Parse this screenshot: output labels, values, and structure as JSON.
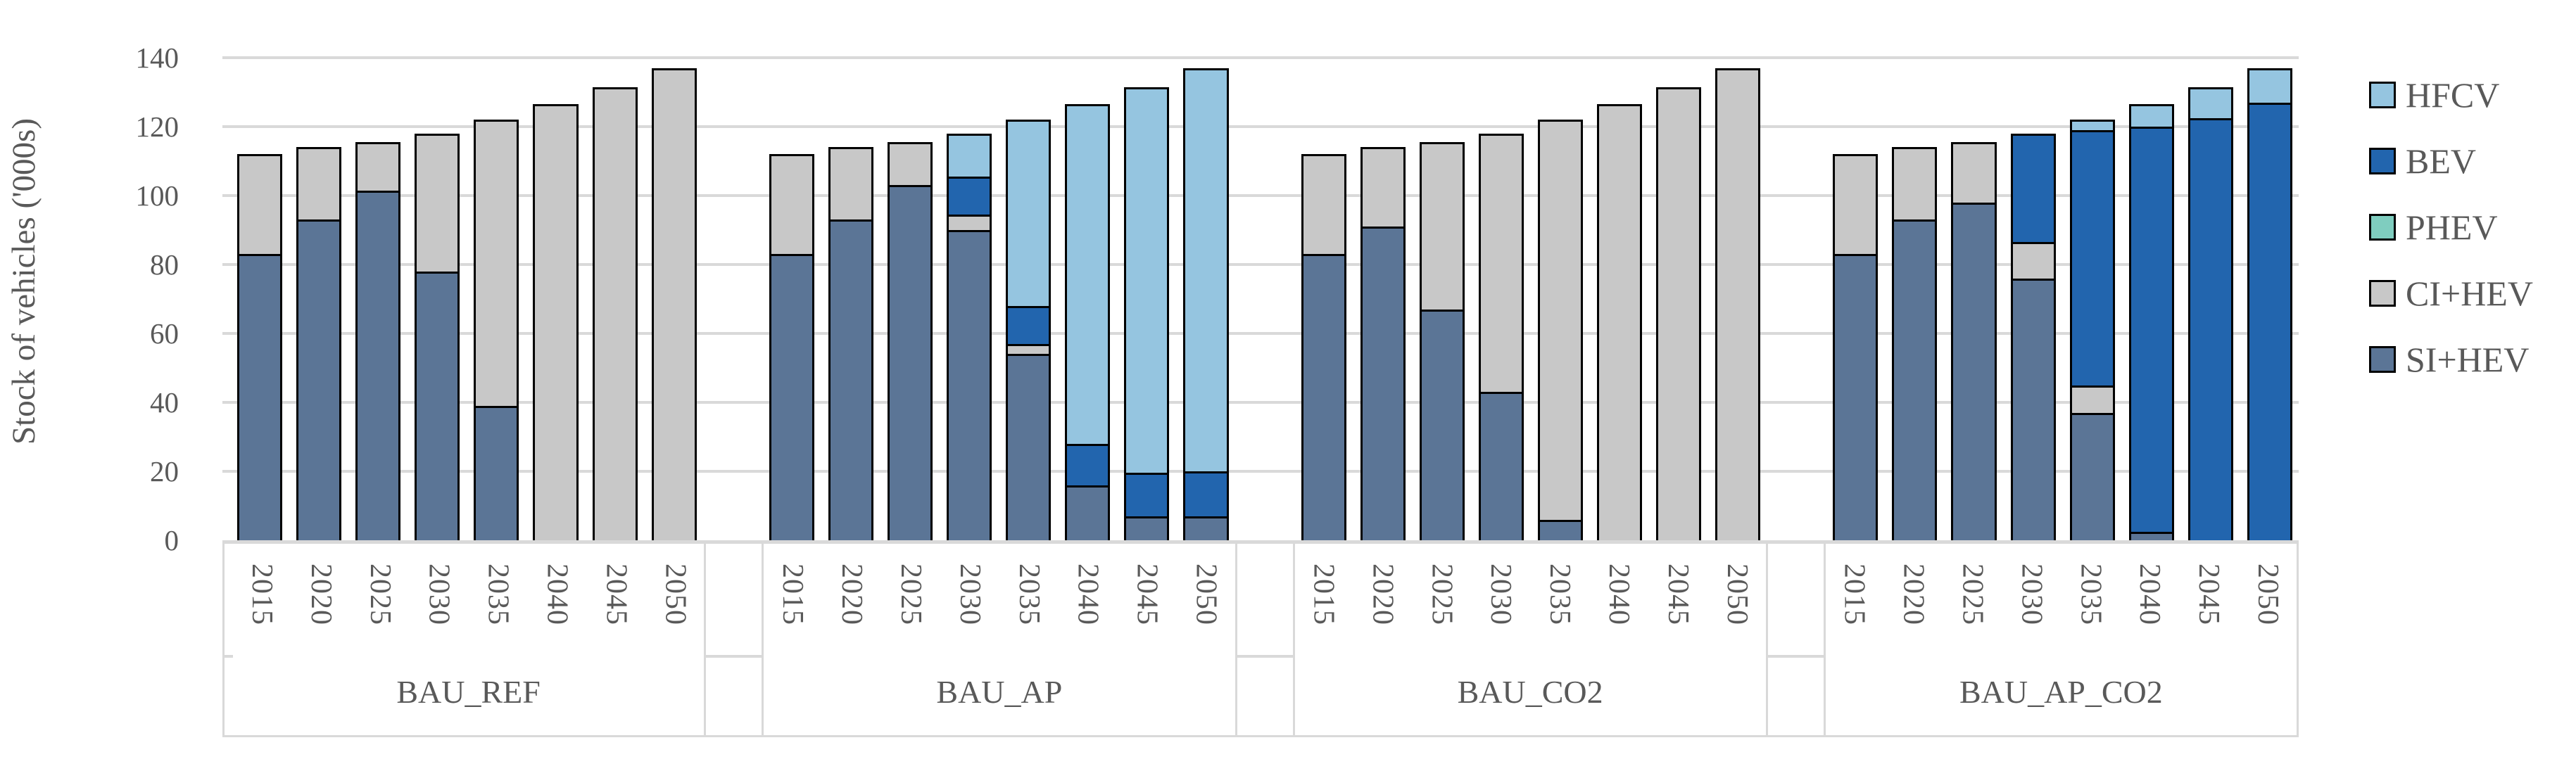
{
  "chart_data": {
    "type": "bar",
    "stacked": true,
    "title": "",
    "xlabel": "",
    "ylabel": "Stock of vehicles ('000s)",
    "ylim": [
      0,
      140
    ],
    "yticks": [
      0,
      20,
      40,
      60,
      80,
      100,
      120,
      140
    ],
    "grid": true,
    "legend_position": "right",
    "years": [
      "2015",
      "2020",
      "2025",
      "2030",
      "2035",
      "2040",
      "2045",
      "2050"
    ],
    "stack_order_bottom_to_top": [
      "SI+HEV",
      "CI+HEV",
      "PHEV",
      "BEV",
      "HFCV"
    ],
    "legend": [
      "HFCV",
      "BEV",
      "PHEV",
      "CI+HEV",
      "SI+HEV"
    ],
    "series_colors": {
      "HFCV": "#95C5E0",
      "BEV": "#2265AE",
      "PHEV": "#7FCDBF",
      "CI+HEV": "#C8C8C8",
      "SI+HEV": "#5B7596"
    },
    "panels": [
      {
        "label": "BAU_REF",
        "series": {
          "SI+HEV": [
            83,
            93,
            101.5,
            78,
            39,
            0,
            0,
            0
          ],
          "CI+HEV": [
            29,
            21,
            14,
            40,
            83,
            126.5,
            131.5,
            137
          ],
          "PHEV": [
            0,
            0,
            0,
            0,
            0,
            0,
            0,
            0
          ],
          "BEV": [
            0,
            0,
            0,
            0,
            0,
            0,
            0,
            0
          ],
          "HFCV": [
            0,
            0,
            0,
            0,
            0,
            0,
            0,
            0
          ]
        }
      },
      {
        "label": "BAU_AP",
        "series": {
          "SI+HEV": [
            83,
            93,
            103,
            90,
            54,
            16,
            7,
            7
          ],
          "CI+HEV": [
            29,
            21,
            12.5,
            4.5,
            3,
            0,
            0,
            0
          ],
          "PHEV": [
            0,
            0,
            0,
            0,
            0,
            0,
            0,
            0
          ],
          "BEV": [
            0,
            0,
            0,
            11,
            11,
            12,
            12.5,
            13
          ],
          "HFCV": [
            0,
            0,
            0,
            12.5,
            54,
            98.5,
            112,
            117
          ]
        }
      },
      {
        "label": "BAU_CO2",
        "series": {
          "SI+HEV": [
            83,
            91,
            67,
            43,
            6,
            0,
            0,
            0
          ],
          "CI+HEV": [
            29,
            23,
            48.5,
            75,
            116,
            126.5,
            131.5,
            137
          ],
          "PHEV": [
            0,
            0,
            0,
            0,
            0,
            0,
            0,
            0
          ],
          "BEV": [
            0,
            0,
            0,
            0,
            0,
            0,
            0,
            0
          ],
          "HFCV": [
            0,
            0,
            0,
            0,
            0,
            0,
            0,
            0
          ]
        }
      },
      {
        "label": "BAU_AP_CO2",
        "series": {
          "SI+HEV": [
            83,
            93,
            98,
            76,
            37,
            2.5,
            0,
            0
          ],
          "CI+HEV": [
            29,
            21,
            17.5,
            10.5,
            8,
            0,
            0,
            0
          ],
          "PHEV": [
            0,
            0,
            0,
            0,
            0,
            0,
            0,
            0
          ],
          "BEV": [
            0,
            0,
            0,
            31.5,
            74,
            117.5,
            122.5,
            127
          ],
          "HFCV": [
            0,
            0,
            0,
            0,
            3,
            6.5,
            9,
            10
          ]
        }
      }
    ],
    "colors": {
      "gridline": "#D9D9D9",
      "axis_text": "#595959",
      "bar_border": "#000000",
      "label_box_border": "#D9D9D9"
    }
  }
}
